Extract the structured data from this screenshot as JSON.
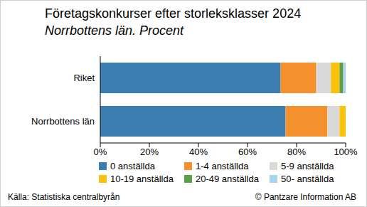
{
  "chart_data": {
    "type": "bar",
    "orientation": "horizontal",
    "stacked": true,
    "title": "Företagskonkurser efter storleksklasser 2024",
    "subtitle": "Norrbottens län. Procent",
    "source": "Källa: Statistiska centralbyrån",
    "copyright": "© Pantzare Information AB",
    "categories": [
      "Riket",
      "Norrbottens län"
    ],
    "series": [
      {
        "name": "0 anställda",
        "color": "#3c7eb0",
        "values": [
          73.5,
          75.5
        ]
      },
      {
        "name": "1-4 anställda",
        "color": "#f5912c",
        "values": [
          14.5,
          17
        ]
      },
      {
        "name": "5-9 anställda",
        "color": "#d9d9d9",
        "values": [
          6,
          5
        ]
      },
      {
        "name": "10-19 anställda",
        "color": "#fbc20c",
        "values": [
          3.5,
          2.5
        ]
      },
      {
        "name": "20-49 anställda",
        "color": "#5ba045",
        "values": [
          1.5,
          0
        ]
      },
      {
        "name": "50- anställda",
        "color": "#a9d3ef",
        "values": [
          1,
          0
        ]
      }
    ],
    "xlim": [
      0,
      100
    ],
    "xticks": [
      {
        "value": 0,
        "label": "0%"
      },
      {
        "value": 20,
        "label": "20%"
      },
      {
        "value": 40,
        "label": "40%"
      },
      {
        "value": 60,
        "label": "60%"
      },
      {
        "value": 80,
        "label": "80%"
      },
      {
        "value": 100,
        "label": "100%"
      }
    ],
    "grid": false,
    "legend": "bottom"
  }
}
